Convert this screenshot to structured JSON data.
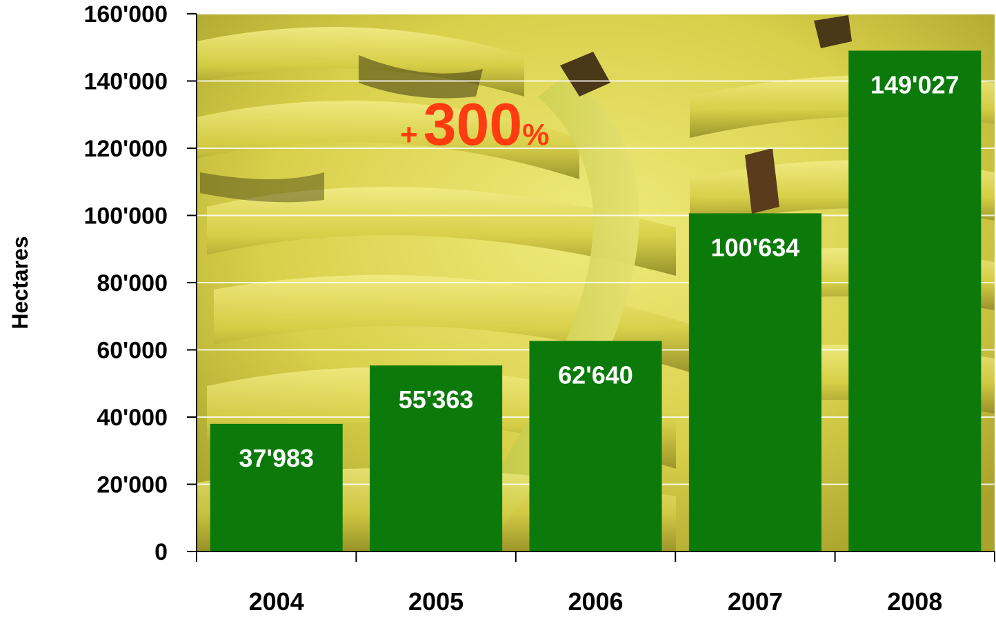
{
  "chart_data": {
    "type": "bar",
    "categories": [
      "2004",
      "2005",
      "2006",
      "2007",
      "2008"
    ],
    "values": [
      37983,
      55363,
      62640,
      100634,
      149027
    ],
    "data_labels": [
      "37'983",
      "55'363",
      "62'640",
      "100'634",
      "149'027"
    ],
    "ylabel": "Hectares",
    "xlabel": "",
    "title": "",
    "ylim": [
      0,
      160000
    ],
    "yticks": [
      0,
      20000,
      40000,
      60000,
      80000,
      100000,
      120000,
      140000,
      160000
    ],
    "ytick_labels": [
      "0",
      "20'000",
      "40'000",
      "60'000",
      "80'000",
      "100'000",
      "120'000",
      "140'000",
      "160'000"
    ],
    "grid": true,
    "legend": "none",
    "annotation": {
      "prefix": "+",
      "number": "300",
      "suffix": "%"
    },
    "colors": {
      "bar": "#0b7a0b",
      "annotation": "#ff3b10",
      "gridline": "#ffffff",
      "axis": "#000000",
      "background_base": "#c9c23a",
      "background_light": "#e6df6a",
      "background_dark": "#5e5a18"
    },
    "background": "bananas-photo"
  }
}
